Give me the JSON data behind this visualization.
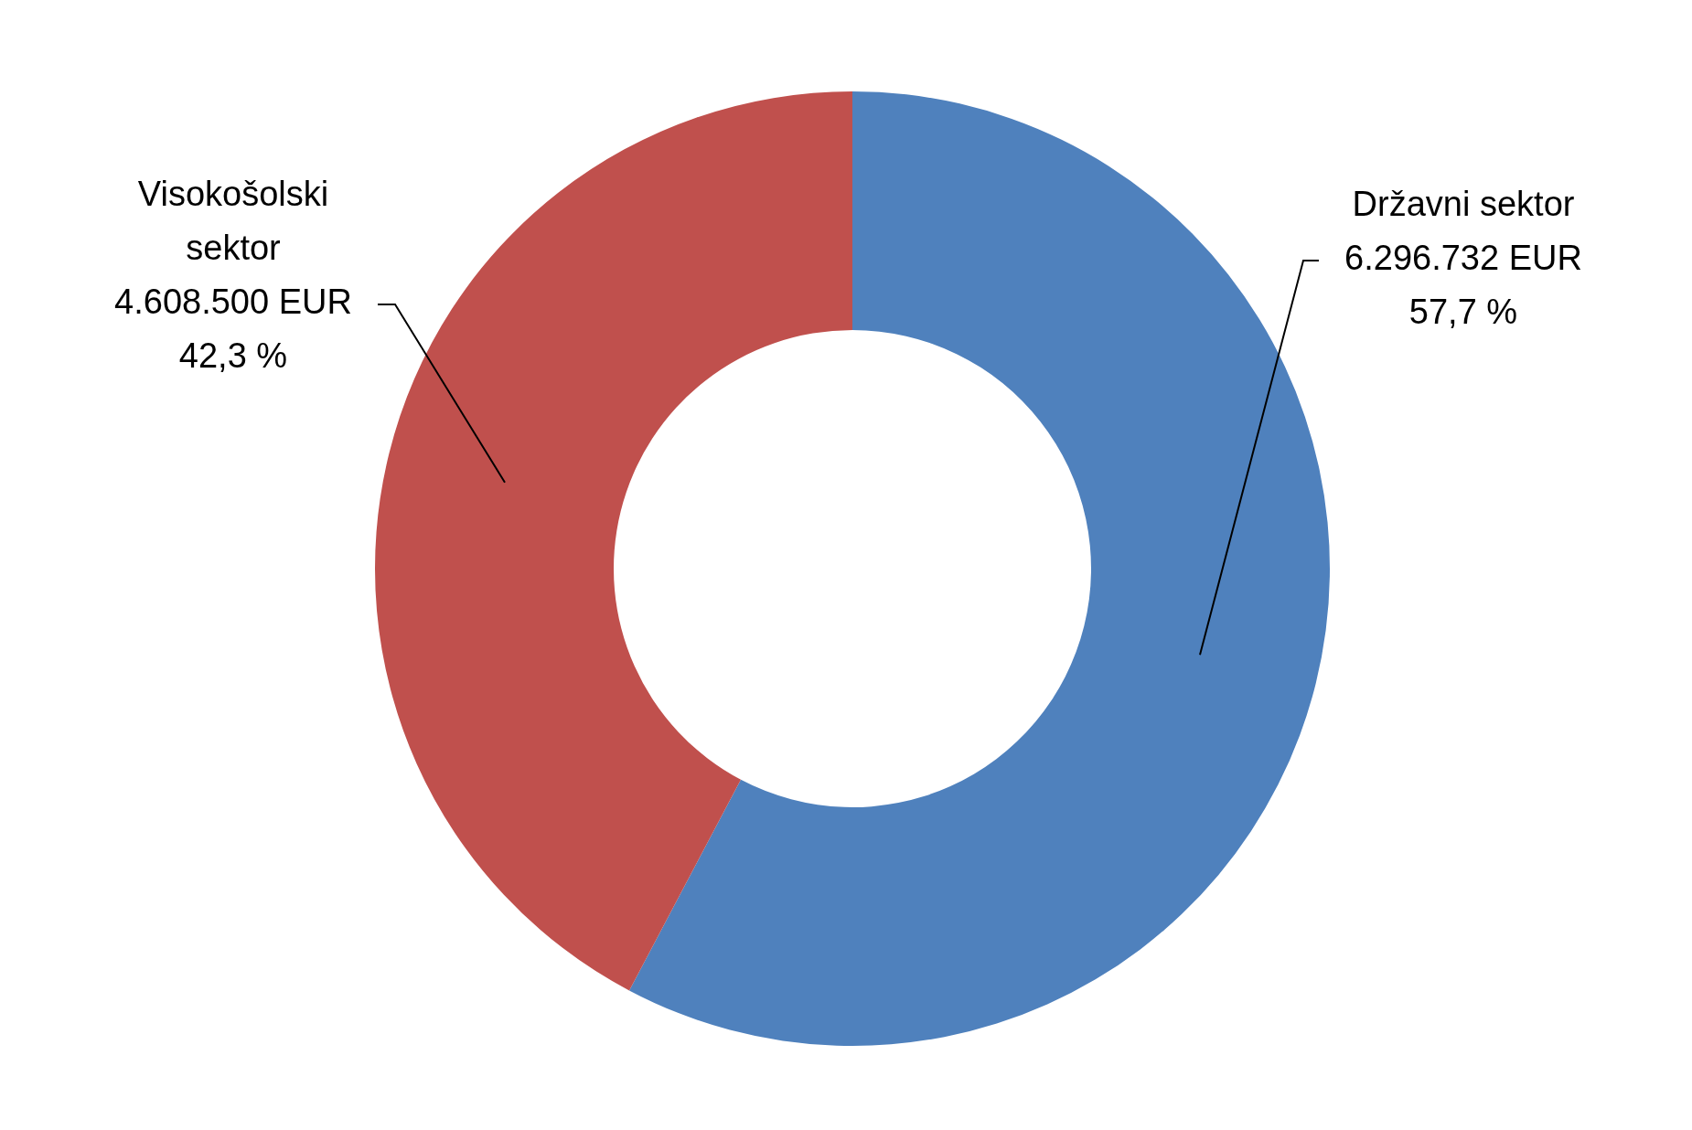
{
  "chart_data": {
    "type": "donut",
    "categories": [
      "Državni sektor",
      "Visokošolski sektor"
    ],
    "values": [
      6296732,
      4608500
    ],
    "colors": [
      "#4f81bd",
      "#c0504d"
    ],
    "value_labels": [
      "6.296.732 EUR\n57,7 %",
      "4.608.500 EUR\n42,3 %"
    ],
    "legend": false
  }
}
